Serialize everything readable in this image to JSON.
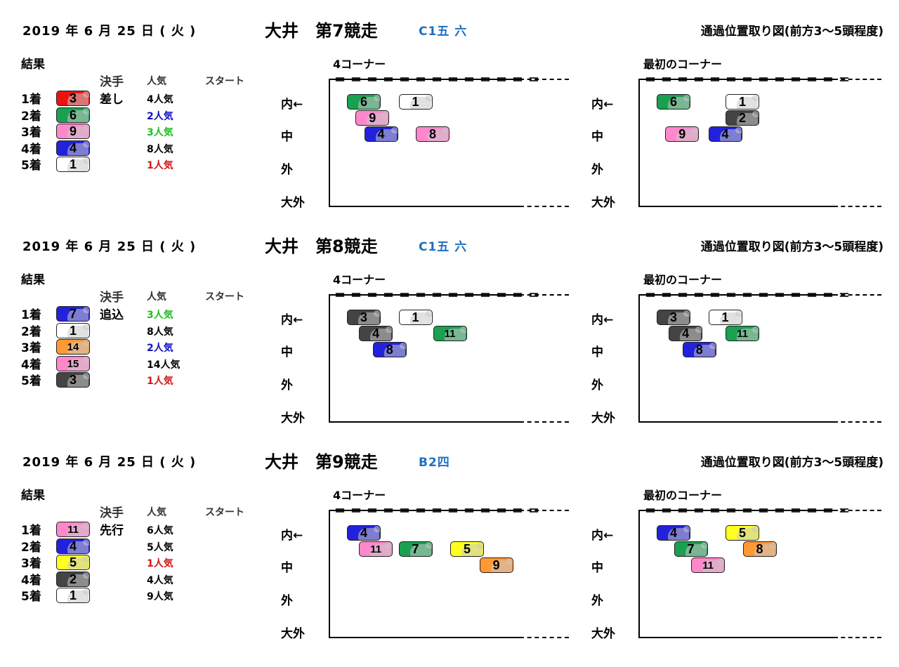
{
  "colors": {
    "waku": {
      "1": "#ffffff",
      "2": "#444444",
      "3": "#ee1111",
      "4": "#2222dd",
      "5": "#ffff22",
      "6": "#19a050",
      "7": "#ff9933",
      "8": "#ff88cc"
    },
    "popularity_first": "#d01818",
    "popularity_second": "#1010c0",
    "popularity_third": "#1fbf1f",
    "race_class": "#1f6fbf"
  },
  "lane_labels": [
    "内←",
    "中",
    "外",
    "大外"
  ],
  "result_label": "結果",
  "col_kimete": "決手",
  "col_ninki": "人気",
  "col_start": "スタート",
  "corner4_label": "4コーナー",
  "corner1_label": "最初のコーナー",
  "equal_line": "＝＝＝＝＝＝＝＝＝＝＝＝＝",
  "diagram_title": "通過位置取り図(前方3～5頭程度)",
  "races": [
    {
      "date": "2019 年 6  月 25 日 ( 火 )",
      "title": "大井　第7競走",
      "race_class": "C1五 六",
      "kimete": "差し",
      "results": [
        {
          "rank": "1着",
          "num": "3",
          "waku": "3",
          "popularity": "4人気",
          "pop_rank": 4
        },
        {
          "rank": "2着",
          "num": "6",
          "waku": "6",
          "popularity": "2人気",
          "pop_rank": 2
        },
        {
          "rank": "3着",
          "num": "9",
          "waku": "8",
          "popularity": "3人気",
          "pop_rank": 3
        },
        {
          "rank": "4着",
          "num": "4",
          "waku": "4",
          "popularity": "8人気",
          "pop_rank": 8
        },
        {
          "rank": "5着",
          "num": "1",
          "waku": "1",
          "popularity": "1人気",
          "pop_rank": 1
        }
      ],
      "corner4": [
        {
          "num": "6",
          "waku": "6",
          "lane": 0,
          "pos": 0
        },
        {
          "num": "1",
          "waku": "1",
          "lane": 0,
          "pos": 3
        },
        {
          "num": "9",
          "waku": "8",
          "lane": 0.5,
          "pos": 0.5
        },
        {
          "num": "4",
          "waku": "4",
          "lane": 1,
          "pos": 1
        },
        {
          "num": "8",
          "waku": "8",
          "lane": 1,
          "pos": 4
        }
      ],
      "corner1": [
        {
          "num": "6",
          "waku": "6",
          "lane": 0,
          "pos": 0
        },
        {
          "num": "1",
          "waku": "1",
          "lane": 0,
          "pos": 4
        },
        {
          "num": "2",
          "waku": "2",
          "lane": 0.5,
          "pos": 4
        },
        {
          "num": "9",
          "waku": "8",
          "lane": 1,
          "pos": 0.5
        },
        {
          "num": "4",
          "waku": "4",
          "lane": 1,
          "pos": 3
        }
      ]
    },
    {
      "date": "2019 年 6  月 25 日 ( 火 )",
      "title": "大井　第8競走",
      "race_class": "C1五 六",
      "kimete": "追込",
      "results": [
        {
          "rank": "1着",
          "num": "7",
          "waku": "4",
          "popularity": "3人気",
          "pop_rank": 3
        },
        {
          "rank": "2着",
          "num": "1",
          "waku": "1",
          "popularity": "8人気",
          "pop_rank": 8
        },
        {
          "rank": "3着",
          "num": "14",
          "waku": "7",
          "popularity": "2人気",
          "pop_rank": 2
        },
        {
          "rank": "4着",
          "num": "15",
          "waku": "8",
          "popularity": "14人気",
          "pop_rank": 14
        },
        {
          "rank": "5着",
          "num": "3",
          "waku": "2",
          "popularity": "1人気",
          "pop_rank": 1
        }
      ],
      "corner4": [
        {
          "num": "3",
          "waku": "2",
          "lane": 0,
          "pos": 0
        },
        {
          "num": "1",
          "waku": "1",
          "lane": 0,
          "pos": 3
        },
        {
          "num": "4",
          "waku": "2",
          "lane": 0.5,
          "pos": 0.7
        },
        {
          "num": "11",
          "waku": "6",
          "lane": 0.5,
          "pos": 5
        },
        {
          "num": "8",
          "waku": "4",
          "lane": 1,
          "pos": 1.5
        }
      ],
      "corner1": [
        {
          "num": "3",
          "waku": "2",
          "lane": 0,
          "pos": 0
        },
        {
          "num": "1",
          "waku": "1",
          "lane": 0,
          "pos": 3
        },
        {
          "num": "4",
          "waku": "2",
          "lane": 0.5,
          "pos": 0.7
        },
        {
          "num": "11",
          "waku": "6",
          "lane": 0.5,
          "pos": 4
        },
        {
          "num": "8",
          "waku": "4",
          "lane": 1,
          "pos": 1.5
        }
      ]
    },
    {
      "date": "2019 年 6  月 25 日 ( 火 )",
      "title": "大井　第9競走",
      "race_class": "B2四",
      "kimete": "先行",
      "results": [
        {
          "rank": "1着",
          "num": "11",
          "waku": "8",
          "popularity": "6人気",
          "pop_rank": 6
        },
        {
          "rank": "2着",
          "num": "4",
          "waku": "4",
          "popularity": "5人気",
          "pop_rank": 5
        },
        {
          "rank": "3着",
          "num": "5",
          "waku": "5",
          "popularity": "1人気",
          "pop_rank": 1
        },
        {
          "rank": "4着",
          "num": "2",
          "waku": "2",
          "popularity": "4人気",
          "pop_rank": 4
        },
        {
          "rank": "5着",
          "num": "1",
          "waku": "1",
          "popularity": "9人気",
          "pop_rank": 9
        }
      ],
      "corner4": [
        {
          "num": "4",
          "waku": "4",
          "lane": 0,
          "pos": 0
        },
        {
          "num": "11",
          "waku": "8",
          "lane": 0.5,
          "pos": 0.7
        },
        {
          "num": "7",
          "waku": "6",
          "lane": 0.5,
          "pos": 3
        },
        {
          "num": "5",
          "waku": "5",
          "lane": 0.5,
          "pos": 6
        },
        {
          "num": "9",
          "waku": "7",
          "lane": 1,
          "pos": 7.7
        }
      ],
      "corner1": [
        {
          "num": "4",
          "waku": "4",
          "lane": 0,
          "pos": 0
        },
        {
          "num": "5",
          "waku": "5",
          "lane": 0,
          "pos": 4
        },
        {
          "num": "7",
          "waku": "6",
          "lane": 0.5,
          "pos": 1
        },
        {
          "num": "8",
          "waku": "7",
          "lane": 0.5,
          "pos": 5
        },
        {
          "num": "11",
          "waku": "8",
          "lane": 1,
          "pos": 2
        }
      ]
    }
  ]
}
